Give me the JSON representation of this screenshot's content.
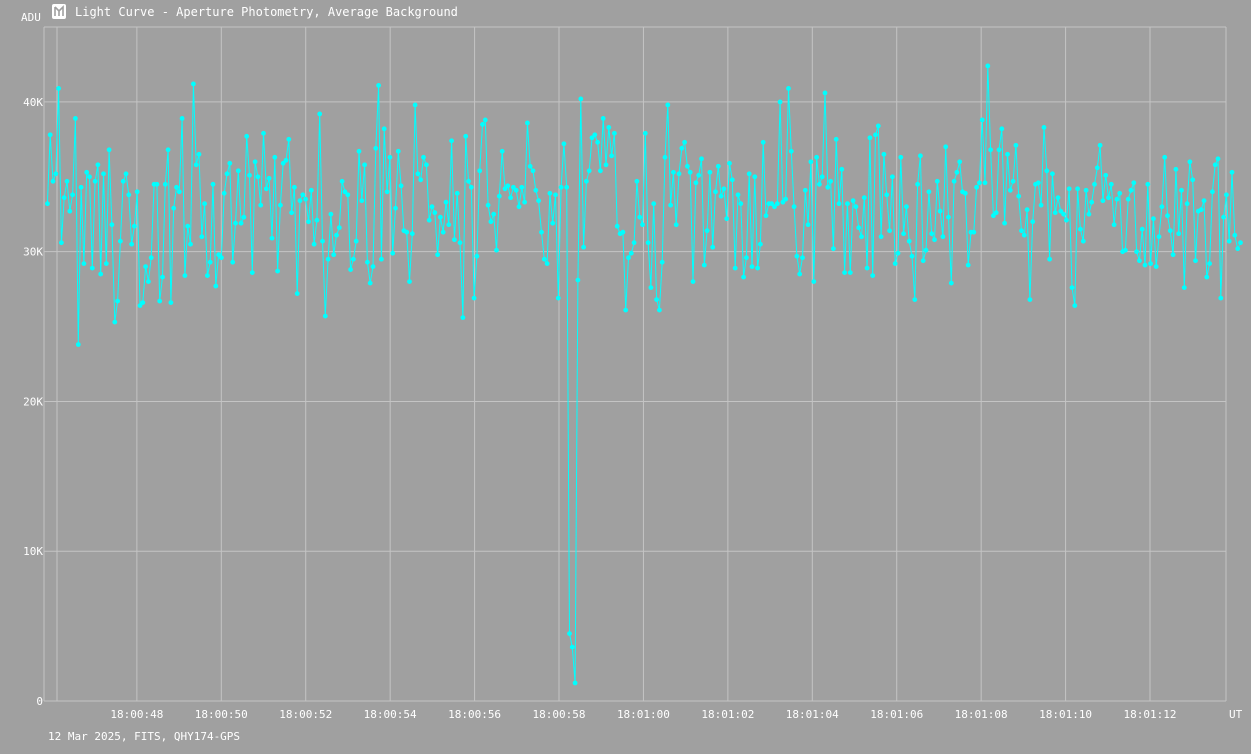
{
  "header": {
    "title": "Light Curve - Aperture Photometry, Average Background",
    "icon": "app-logo-icon"
  },
  "footer": {
    "caption": "12 Mar 2025, FITS, QHY174-GPS"
  },
  "colors": {
    "background": "#a0a0a0",
    "grid": "#c4c4c4",
    "series": "#00ffff",
    "text": "#ffffff"
  },
  "chart_data": {
    "type": "line",
    "title": "Light Curve - Aperture Photometry, Average Background",
    "ylabel": "ADU",
    "xlabel": "UT",
    "ylim": [
      0,
      45000
    ],
    "y_ticks": [
      {
        "value": 0,
        "label": "0"
      },
      {
        "value": 10000,
        "label": "10K"
      },
      {
        "value": 20000,
        "label": "20K"
      },
      {
        "value": 30000,
        "label": "30K"
      },
      {
        "value": 40000,
        "label": "40K"
      }
    ],
    "x_range_seconds": [
      45.8,
      73.8
    ],
    "x_ticks": [
      {
        "value": 48,
        "label": "18:00:48"
      },
      {
        "value": 50,
        "label": "18:00:50"
      },
      {
        "value": 52,
        "label": "18:00:52"
      },
      {
        "value": 54,
        "label": "18:00:54"
      },
      {
        "value": 56,
        "label": "18:00:56"
      },
      {
        "value": 58,
        "label": "18:00:58"
      },
      {
        "value": 60,
        "label": "18:01:00"
      },
      {
        "value": 62,
        "label": "18:01:02"
      },
      {
        "value": 64,
        "label": "18:01:04"
      },
      {
        "value": 66,
        "label": "18:01:06"
      },
      {
        "value": 68,
        "label": "18:01:08"
      },
      {
        "value": 70,
        "label": "18:01:10"
      },
      {
        "value": 72,
        "label": "18:01:12"
      }
    ],
    "grid": true,
    "x_start": 45.88,
    "x_step": 0.0665,
    "y": [
      33200,
      37800,
      34700,
      35200,
      40900,
      30600,
      33600,
      34700,
      32700,
      33800,
      38900,
      23800,
      34300,
      29200,
      35300,
      35000,
      28900,
      34700,
      35800,
      28500,
      35200,
      29200,
      36800,
      31800,
      25300,
      26700,
      30700,
      34700,
      35200,
      33800,
      30500,
      31700,
      34000,
      26400,
      26600,
      29000,
      28000,
      29600,
      34500,
      34500,
      26700,
      28300,
      34500,
      36800,
      26600,
      32900,
      34300,
      34000,
      38900,
      28400,
      31700,
      30500,
      41200,
      35800,
      36500,
      31000,
      33200,
      28400,
      29300,
      34500,
      27700,
      29800,
      29600,
      33900,
      35200,
      35900,
      29300,
      31900,
      35400,
      31900,
      32300,
      37700,
      35100,
      28600,
      36000,
      35000,
      33100,
      37900,
      34200,
      34900,
      30900,
      36300,
      28700,
      33100,
      35900,
      36100,
      37500,
      32600,
      34300,
      27200,
      33400,
      33800,
      33500,
      32000,
      34100,
      30500,
      32100,
      39200,
      30700,
      25700,
      29500,
      32500,
      29800,
      31100,
      31600,
      34700,
      34000,
      33800,
      28800,
      29500,
      30700,
      36700,
      33400,
      35800,
      29300,
      27900,
      29000,
      36900,
      41100,
      29500,
      38200,
      34000,
      36300,
      29900,
      32900,
      36700,
      34400,
      31400,
      31300,
      28000,
      31200,
      39800,
      35200,
      34800,
      36300,
      35800,
      32100,
      33000,
      32600,
      29800,
      32300,
      31300,
      33300,
      31800,
      37400,
      30800,
      33900,
      30600,
      25600,
      37700,
      34700,
      34300,
      26900,
      29700,
      35400,
      38500,
      38800,
      33100,
      32000,
      32500,
      30100,
      33700,
      36700,
      34200,
      34400,
      33600,
      34300,
      34100,
      33000,
      34300,
      33300,
      38600,
      35700,
      35400,
      34100,
      33400,
      31300,
      29500,
      29200,
      33900,
      31900,
      33800,
      26900,
      34300,
      37200,
      34300,
      4500,
      3600,
      1200,
      28100,
      40200,
      30300,
      34700,
      35400,
      37600,
      37800,
      37300,
      35400,
      38900,
      35800,
      38300,
      36400,
      37900,
      31700,
      31200,
      31300,
      26100,
      29600,
      29900,
      30600,
      34700,
      32300,
      31800,
      37900,
      30600,
      27600,
      33200,
      26800,
      26100,
      29300,
      36300,
      39800,
      33100,
      35300,
      31800,
      35200,
      36900,
      37300,
      35700,
      35300,
      28000,
      34600,
      35100,
      36200,
      29100,
      31400,
      35300,
      30300,
      34000,
      35700,
      33700,
      34200,
      32200,
      35900,
      34800,
      28900,
      33800,
      33200,
      28300,
      29600,
      35200,
      29000,
      35000,
      28900,
      30500,
      37300,
      32400,
      33200,
      33200,
      33000,
      33200,
      40000,
      33300,
      33500,
      40900,
      36700,
      33000,
      29700,
      28500,
      29600,
      34100,
      31800,
      36000,
      28000,
      36300,
      34500,
      35000,
      40600,
      34300,
      34700,
      30200,
      37500,
      33200,
      35500,
      28600,
      33200,
      28600,
      33400,
      33000,
      31600,
      31000,
      33600,
      28900,
      37600,
      28400,
      37800,
      38400,
      31000,
      36500,
      33800,
      31400,
      35000,
      29200,
      29900,
      36300,
      31200,
      33000,
      30700,
      29700,
      26800,
      34500,
      36400,
      29400,
      30100,
      34000,
      31200,
      30800,
      34700,
      32700,
      31000,
      37000,
      32300,
      27900,
      34700,
      35300,
      36000,
      34000,
      33900,
      29100,
      31300,
      31300,
      34300,
      34600,
      38800,
      34600,
      42400,
      36800,
      32400,
      32600,
      36800,
      38200,
      31900,
      36500,
      34100,
      34700,
      37100,
      33700,
      31400,
      31100,
      32800,
      26800,
      32000,
      34500,
      34600,
      33100,
      38300,
      35400,
      29500,
      35200,
      32600,
      33600,
      32700,
      32500,
      32100,
      34200,
      27600,
      26400,
      34200,
      31500,
      30700,
      34100,
      32500,
      33300,
      34500,
      35600,
      37100,
      33400,
      35100,
      33600,
      34500,
      31800,
      33500,
      33900,
      30000,
      30100,
      33500,
      34100,
      34600,
      30000,
      29400,
      31500,
      29100,
      34500,
      29200,
      32200,
      29000,
      31000,
      33000,
      36300,
      32400,
      31400,
      29800,
      35500,
      31200,
      34100,
      27600,
      33200,
      36000,
      34800,
      29400,
      32700,
      32800,
      33400,
      28300,
      29200,
      34000,
      35800,
      36200,
      26900,
      32300,
      33800,
      30700,
      35300,
      31100,
      30200,
      30600
    ]
  }
}
